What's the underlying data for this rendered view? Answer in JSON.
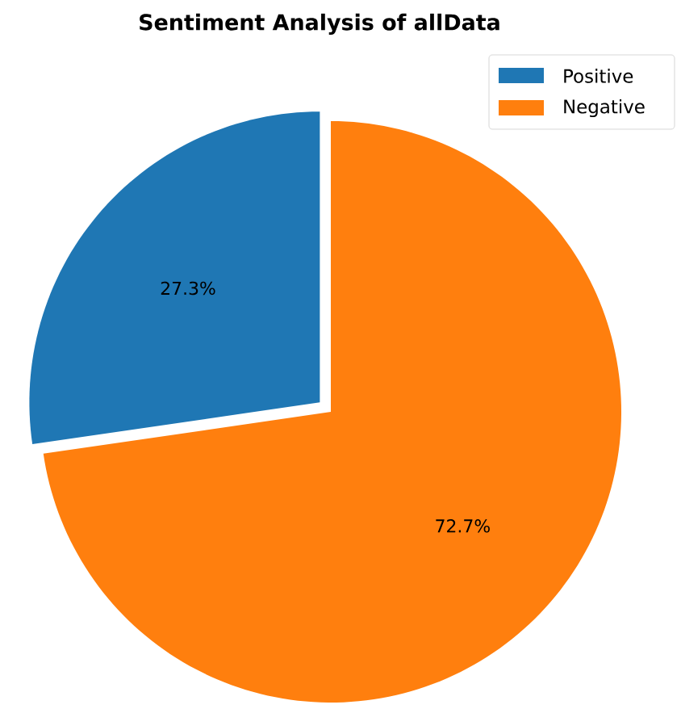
{
  "chart_data": {
    "type": "pie",
    "title": "Sentiment Analysis of   allData",
    "categories": [
      "Positive",
      "Negative"
    ],
    "values": [
      27.3,
      72.7
    ],
    "value_labels": [
      "27.3%",
      "72.7%"
    ],
    "colors": [
      "#1f77b4",
      "#ff7f0e"
    ],
    "legend": "top right"
  }
}
